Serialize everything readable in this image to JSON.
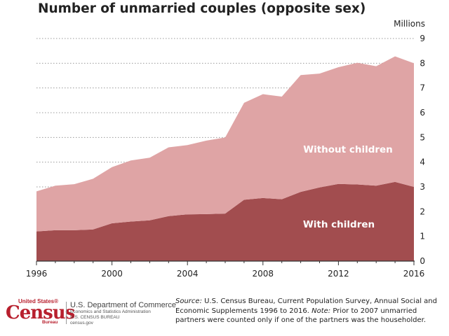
{
  "chart_data": {
    "type": "area",
    "stacked": true,
    "title": "Number of unmarried couples (opposite sex)",
    "ylabel": "Millions",
    "xlim": [
      1996,
      2016
    ],
    "ylim": [
      0,
      9
    ],
    "x_ticks": [
      1996,
      2000,
      2004,
      2008,
      2012,
      2016
    ],
    "y_ticks": [
      0,
      1,
      2,
      3,
      4,
      5,
      6,
      7,
      8,
      9
    ],
    "grid": "horizontal-dotted",
    "x": [
      1996,
      1997,
      1998,
      1999,
      2000,
      2001,
      2002,
      2003,
      2004,
      2005,
      2006,
      2007,
      2008,
      2009,
      2010,
      2011,
      2012,
      2013,
      2014,
      2015,
      2016
    ],
    "series": [
      {
        "name": "With children",
        "color": "#a24d4f",
        "values": [
          1.2,
          1.25,
          1.25,
          1.28,
          1.53,
          1.6,
          1.65,
          1.82,
          1.89,
          1.9,
          1.92,
          2.48,
          2.55,
          2.5,
          2.8,
          2.98,
          3.12,
          3.1,
          3.05,
          3.2,
          3.0
        ]
      },
      {
        "name": "Without children",
        "color": "#dfa4a5",
        "values": [
          1.62,
          1.8,
          1.86,
          2.05,
          2.27,
          2.47,
          2.53,
          2.78,
          2.8,
          2.97,
          3.08,
          3.92,
          4.2,
          4.15,
          4.72,
          4.6,
          4.72,
          4.92,
          4.83,
          5.08,
          5.0
        ]
      }
    ]
  },
  "footer": {
    "source_label": "Source:",
    "source_text": " U.S. Census Bureau, Current Population Survey, Annual Social and Economic Supplements 1996 to 2016. ",
    "note_label": "Note:",
    "note_text": " Prior to 2007 unmarried partners were counted only if one of the partners was the householder."
  },
  "logo": {
    "us": "United States®",
    "census": "Census",
    "bureau": "Bureau",
    "dept": "U.S. Department of Commerce",
    "line2": "Economics and Statistics Administration",
    "line3": "U.S. CENSUS BUREAU",
    "line4": "census.gov"
  }
}
